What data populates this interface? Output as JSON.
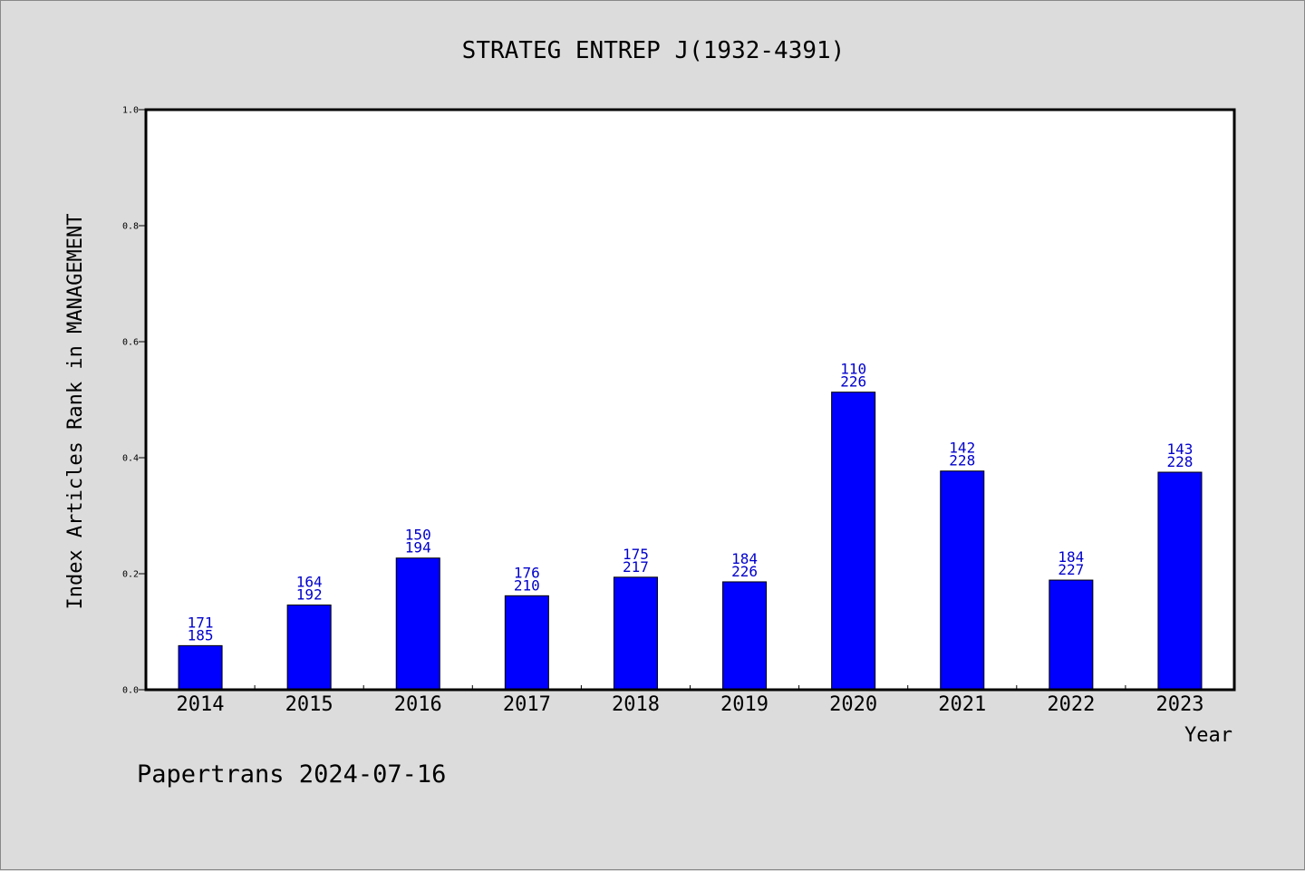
{
  "chart_data": {
    "type": "bar",
    "title": "STRATEG ENTREP J(1932-4391)",
    "xlabel": "Year",
    "ylabel": "Index Articles Rank in MANAGEMENT",
    "ylim": [
      0,
      1.0
    ],
    "yticks": [
      0.0,
      0.2,
      0.4,
      0.6,
      0.8,
      1.0
    ],
    "ytick_labels": [
      "0.0",
      "0.2",
      "0.4",
      "0.6",
      "0.8",
      "1.0"
    ],
    "categories": [
      "2014",
      "2015",
      "2016",
      "2017",
      "2018",
      "2019",
      "2020",
      "2021",
      "2022",
      "2023"
    ],
    "values": [
      0.076,
      0.146,
      0.227,
      0.162,
      0.194,
      0.186,
      0.513,
      0.377,
      0.189,
      0.375
    ],
    "labels_top": [
      "171",
      "164",
      "150",
      "176",
      "175",
      "184",
      "110",
      "142",
      "184",
      "143"
    ],
    "labels_bottom": [
      "185",
      "192",
      "194",
      "210",
      "217",
      "226",
      "226",
      "228",
      "227",
      "228"
    ],
    "bar_color": "#0000ff",
    "label_color": "#0000cc",
    "grid": false
  },
  "footer": "Papertrans 2024-07-16"
}
